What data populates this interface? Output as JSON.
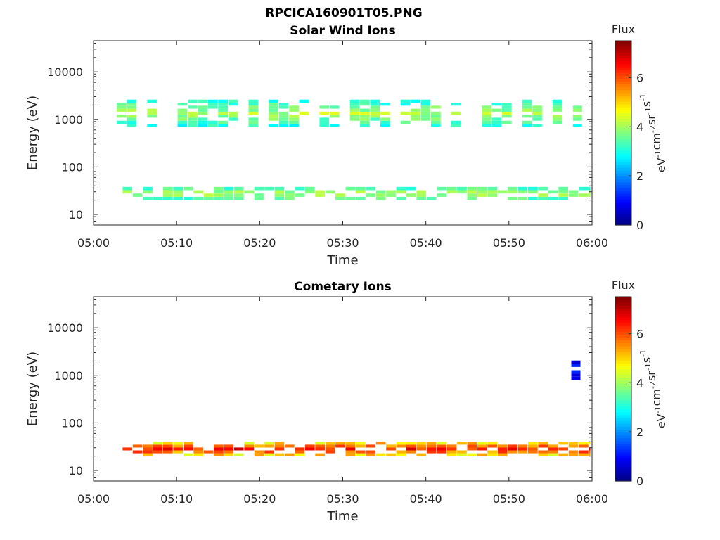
{
  "figure_title": "RPCICA160901T05.PNG",
  "chart_data": [
    {
      "type": "heatmap",
      "title": "Solar Wind Ions",
      "xlabel": "Time",
      "ylabel": "Energy (eV)",
      "x_ticks": [
        "05:00",
        "05:10",
        "05:20",
        "05:30",
        "05:40",
        "05:50",
        "06:00"
      ],
      "x_range_minutes": [
        0,
        60
      ],
      "y_scale": "log",
      "y_ticks": [
        "10",
        "100",
        "1000",
        "10000"
      ],
      "y_range": [
        6,
        45000
      ],
      "colorbar": {
        "label": "Flux",
        "units": "eV-1cm-2sr-1s-1",
        "range": [
          0,
          7.5
        ],
        "ticks": [
          "0",
          "2",
          "4",
          "6"
        ],
        "colormap": "jet"
      },
      "populations": [
        {
          "energy_range_eV": [
            700,
            2600
          ],
          "start_min": 2.8,
          "end_min": 58.8,
          "flux_range": [
            2.5,
            4.5
          ]
        },
        {
          "energy_range_eV": [
            20,
            38
          ],
          "start_min": 3.5,
          "end_min": 59.8,
          "flux_range": [
            2.8,
            4.5
          ]
        }
      ]
    },
    {
      "type": "heatmap",
      "title": "Cometary Ions",
      "xlabel": "Time",
      "ylabel": "Energy (eV)",
      "x_ticks": [
        "05:00",
        "05:10",
        "05:20",
        "05:30",
        "05:40",
        "05:50",
        "06:00"
      ],
      "x_range_minutes": [
        0,
        60
      ],
      "y_scale": "log",
      "y_ticks": [
        "10",
        "100",
        "1000",
        "10000"
      ],
      "y_range": [
        6,
        45000
      ],
      "colorbar": {
        "label": "Flux",
        "units": "eV-1cm-2sr-1s-1",
        "range": [
          0,
          7.5
        ],
        "ticks": [
          "0",
          "2",
          "4",
          "6"
        ],
        "colormap": "jet"
      },
      "populations": [
        {
          "energy_range_eV": [
            20,
            40
          ],
          "start_min": 3.5,
          "end_min": 59.8,
          "flux_range": [
            4.0,
            7.0
          ]
        },
        {
          "energy_range_eV": [
            800,
            2400
          ],
          "start_min": 57.5,
          "end_min": 58.6,
          "flux_range": [
            0.3,
            1.5
          ]
        }
      ]
    }
  ]
}
